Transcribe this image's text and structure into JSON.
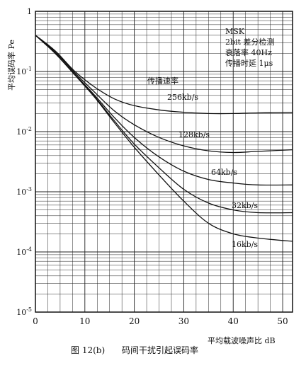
{
  "chart_data": {
    "type": "line",
    "xlabel": "平均载波噪声比 dB",
    "ylabel": "平均误码率 Pe",
    "xlim": [
      0,
      52
    ],
    "x_ticks": [
      0,
      10,
      20,
      30,
      40,
      50
    ],
    "x_tick_labels": [
      "0",
      "10",
      "20",
      "30",
      "40",
      "50"
    ],
    "y_scale": "log",
    "ylim": [
      1e-05,
      1
    ],
    "y_ticks": [
      1,
      0.1,
      0.01,
      0.001,
      0.0001,
      1e-05
    ],
    "y_tick_labels": [
      "1",
      "10-1",
      "10-2",
      "10-3",
      "10-4",
      "10-5"
    ],
    "grid": true,
    "annotation_lines": [
      "MSK",
      "2bit 差分检测",
      "衰落率 40Hz",
      "传播时延 1μs"
    ],
    "series_group_title": "传播速率",
    "series": [
      {
        "name": "256kb/s",
        "points": [
          [
            0,
            0.4
          ],
          [
            4,
            0.22
          ],
          [
            8,
            0.1
          ],
          [
            12,
            0.055
          ],
          [
            16,
            0.035
          ],
          [
            20,
            0.027
          ],
          [
            25,
            0.023
          ],
          [
            30,
            0.021
          ],
          [
            35,
            0.02
          ],
          [
            40,
            0.02
          ],
          [
            45,
            0.0205
          ],
          [
            52,
            0.021
          ]
        ]
      },
      {
        "name": "128kb/s",
        "points": [
          [
            0,
            0.4
          ],
          [
            4,
            0.21
          ],
          [
            8,
            0.095
          ],
          [
            12,
            0.045
          ],
          [
            16,
            0.022
          ],
          [
            20,
            0.013
          ],
          [
            25,
            0.008
          ],
          [
            30,
            0.0058
          ],
          [
            35,
            0.0048
          ],
          [
            40,
            0.0045
          ],
          [
            45,
            0.0047
          ],
          [
            52,
            0.005
          ]
        ]
      },
      {
        "name": "64kb/s",
        "points": [
          [
            0,
            0.4
          ],
          [
            4,
            0.2
          ],
          [
            8,
            0.09
          ],
          [
            12,
            0.04
          ],
          [
            16,
            0.017
          ],
          [
            20,
            0.008
          ],
          [
            25,
            0.0038
          ],
          [
            30,
            0.0022
          ],
          [
            35,
            0.0016
          ],
          [
            40,
            0.0014
          ],
          [
            45,
            0.0013
          ],
          [
            52,
            0.0013
          ]
        ]
      },
      {
        "name": "32kb/s",
        "points": [
          [
            0,
            0.4
          ],
          [
            4,
            0.2
          ],
          [
            8,
            0.088
          ],
          [
            12,
            0.038
          ],
          [
            16,
            0.015
          ],
          [
            20,
            0.0062
          ],
          [
            25,
            0.0025
          ],
          [
            30,
            0.0011
          ],
          [
            35,
            0.00065
          ],
          [
            40,
            0.0005
          ],
          [
            45,
            0.00045
          ],
          [
            52,
            0.00045
          ]
        ]
      },
      {
        "name": "16kb/s",
        "points": [
          [
            0,
            0.4
          ],
          [
            4,
            0.2
          ],
          [
            8,
            0.087
          ],
          [
            12,
            0.037
          ],
          [
            16,
            0.014
          ],
          [
            20,
            0.0055
          ],
          [
            25,
            0.0019
          ],
          [
            30,
            0.0007
          ],
          [
            35,
            0.0003
          ],
          [
            40,
            0.0002
          ],
          [
            45,
            0.00017
          ],
          [
            52,
            0.00015
          ]
        ]
      }
    ]
  },
  "caption": {
    "figure_no": "图 12(b)",
    "text": "码间干扰引起误码率"
  }
}
